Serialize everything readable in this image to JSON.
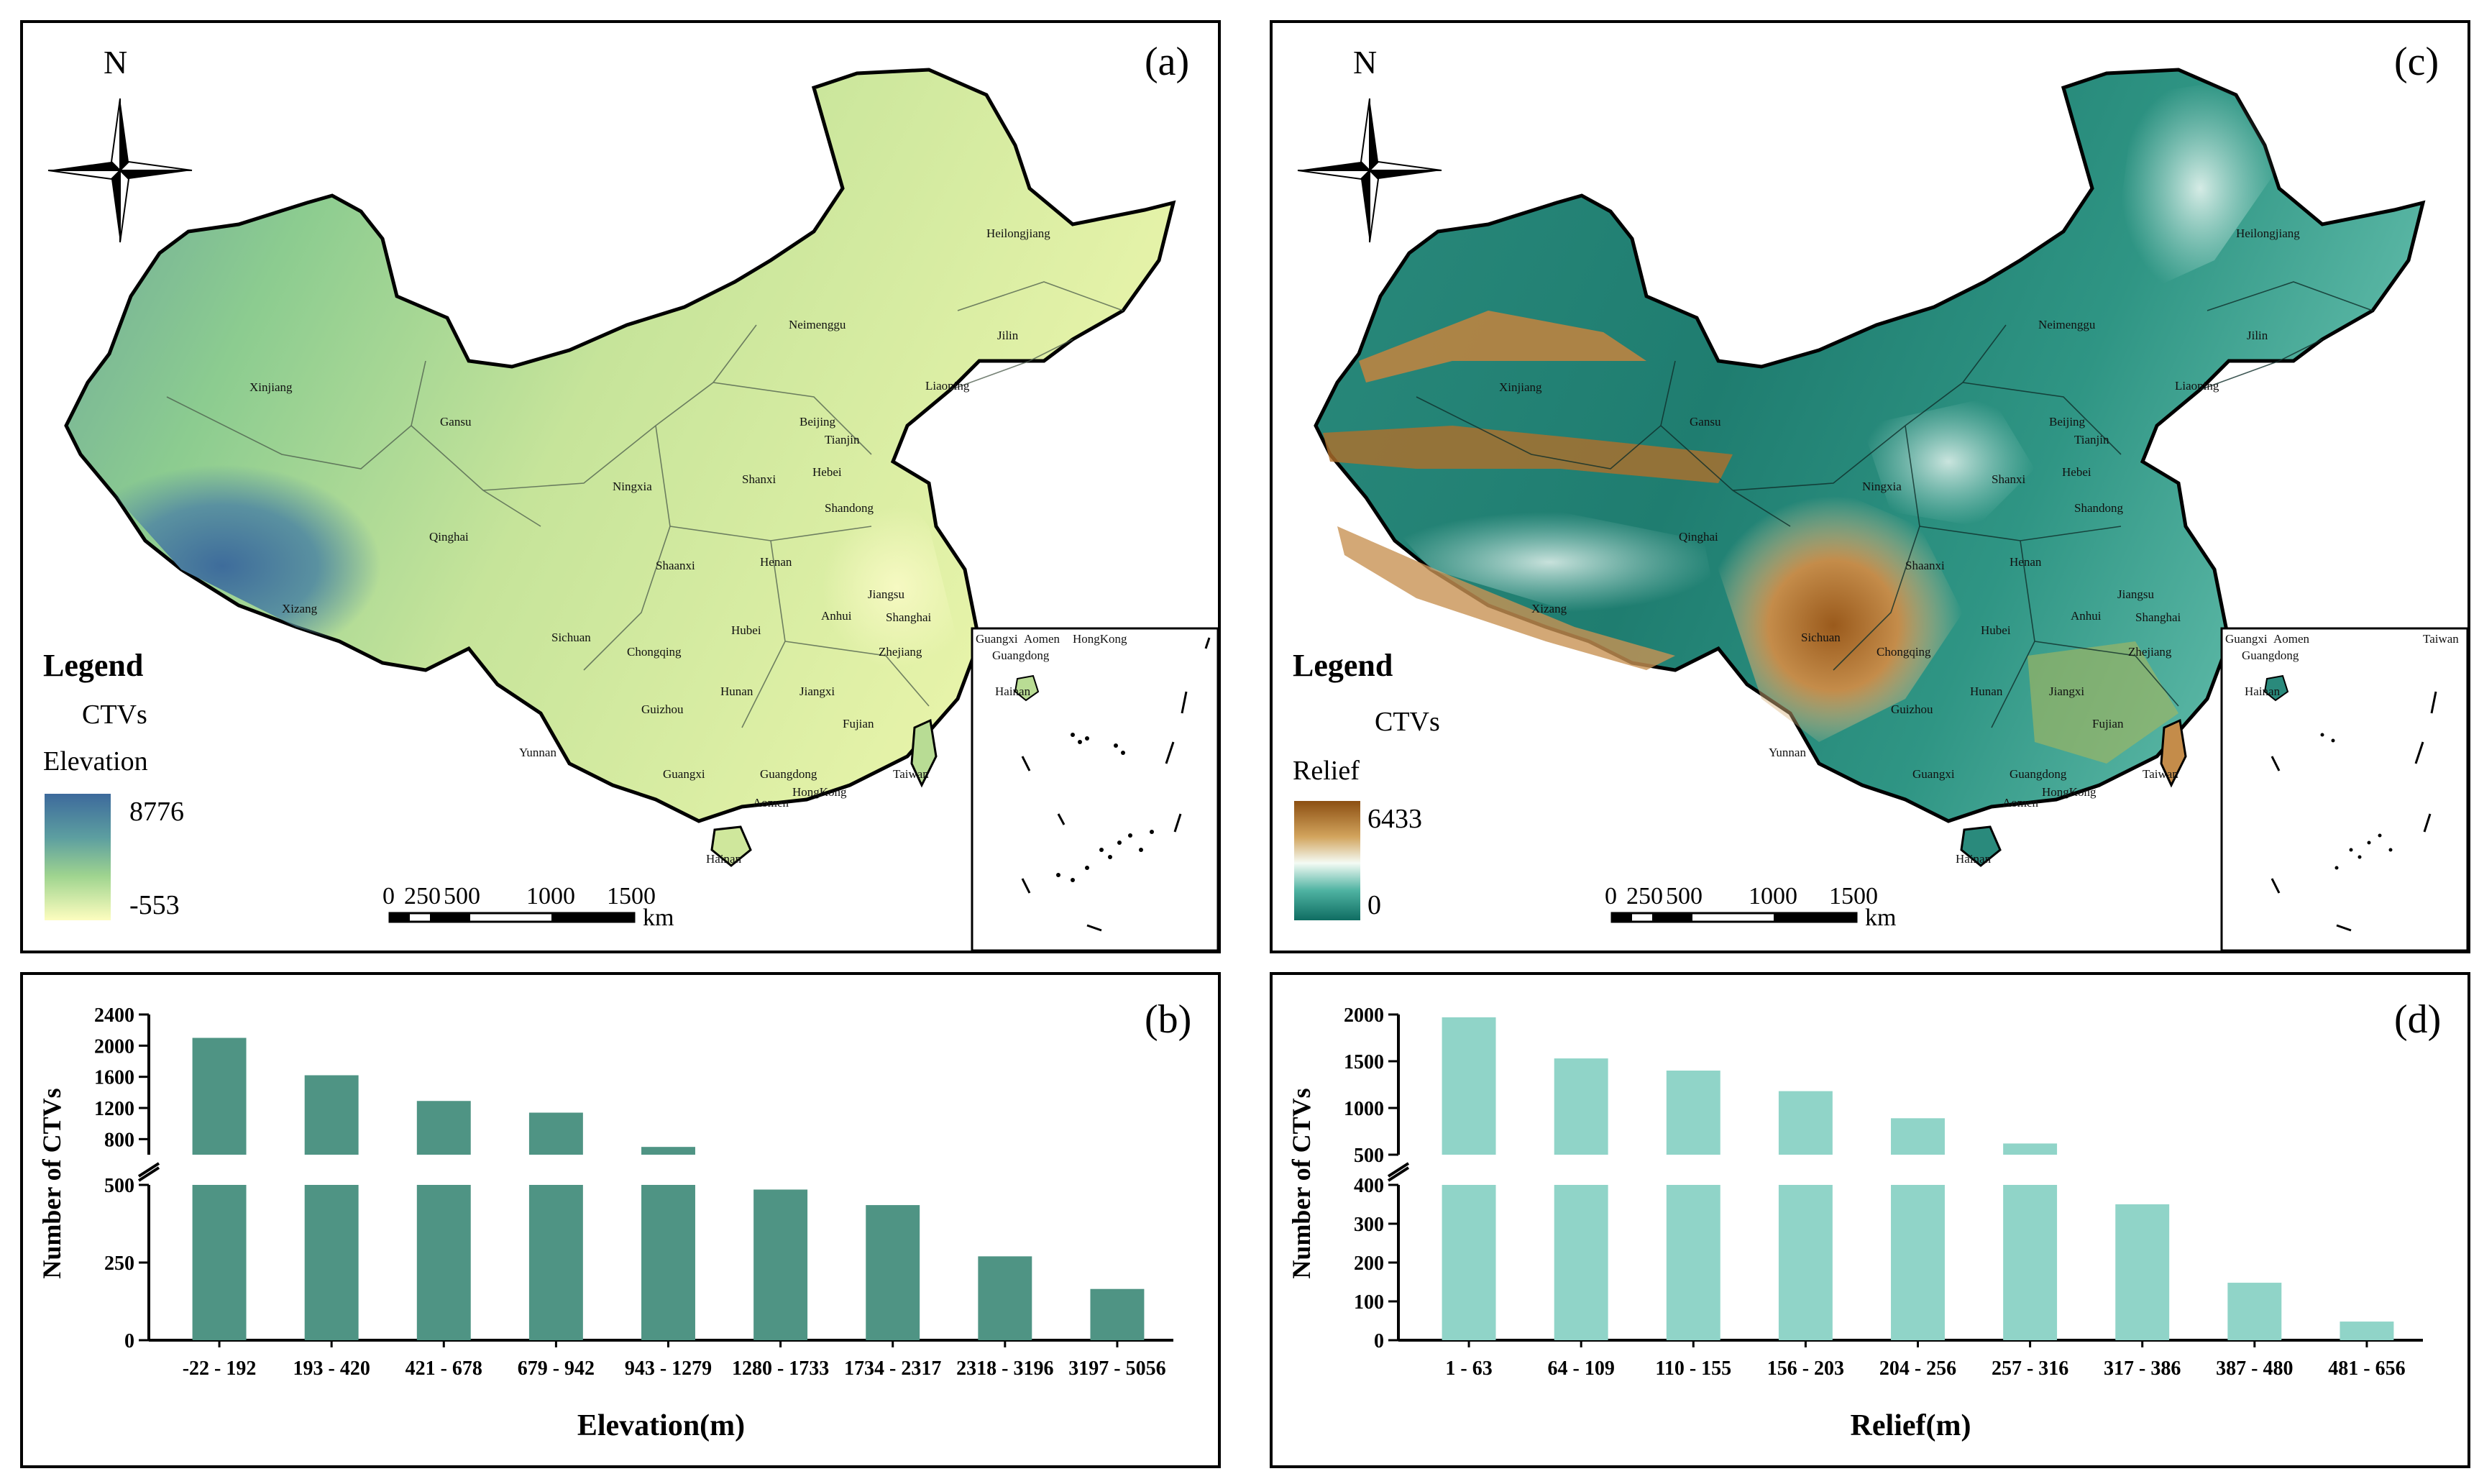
{
  "panel_a": {
    "label": "(a)",
    "north": "N",
    "legend_title": "Legend",
    "ctv_label": "CTVs",
    "var_label": "Elevation",
    "max_label": "8776",
    "min_label": "-553",
    "scale_labels": [
      "0",
      "250",
      "500",
      "1000",
      "1500"
    ],
    "scale_unit": "km",
    "ramp_colors": [
      "#3d6a9c",
      "#5d9fa0",
      "#9fd48f",
      "#fdfdbf"
    ],
    "provinces": [
      "Xinjiang",
      "Gansu",
      "Qinghai",
      "Xizang",
      "Sichuan",
      "Yunnan",
      "Neimenggu",
      "Heilongjiang",
      "Jilin",
      "Liaoning",
      "Beijing",
      "Tianjin",
      "Hebei",
      "Shanxi",
      "Shandong",
      "Ningxia",
      "Shaanxi",
      "Henan",
      "Jiangsu",
      "Shanghai",
      "Anhui",
      "Zhejiang",
      "Hubei",
      "Chongqing",
      "Guizhou",
      "Hunan",
      "Jiangxi",
      "Fujian",
      "Taiwan",
      "Guangxi",
      "Guangdong",
      "HongKong",
      "Aomen",
      "Hainan"
    ],
    "inset_labels": [
      "Guangxi",
      "Aomen",
      "HongKong",
      "Guangdong",
      "Hainan"
    ]
  },
  "panel_c": {
    "label": "(c)",
    "north": "N",
    "legend_title": "Legend",
    "ctv_label": "CTVs",
    "var_label": "Relief",
    "max_label": "6433",
    "min_label": "0",
    "scale_labels": [
      "0",
      "250",
      "500",
      "1000",
      "1500"
    ],
    "scale_unit": "km",
    "ramp_colors": [
      "#0f6d62",
      "#4fb3a2",
      "#f4fbf4",
      "#d2a45d",
      "#8c4f12"
    ],
    "provinces": [
      "Xinjiang",
      "Gansu",
      "Qinghai",
      "Xizang",
      "Sichuan",
      "Yunnan",
      "Neimenggu",
      "Heilongjiang",
      "Jilin",
      "Liaoning",
      "Beijing",
      "Tianjin",
      "Hebei",
      "Shanxi",
      "Shandong",
      "Ningxia",
      "Shaanxi",
      "Henan",
      "Jiangsu",
      "Shanghai",
      "Anhui",
      "Zhejiang",
      "Hubei",
      "Chongqing",
      "Guizhou",
      "Hunan",
      "Jiangxi",
      "Fujian",
      "Taiwan",
      "Guangxi",
      "Guangdong",
      "HongKong",
      "Aomen",
      "Hainan"
    ],
    "inset_labels": [
      "Guangxi",
      "Aomen",
      "Taiwan",
      "Guangdong",
      "Hainan"
    ]
  },
  "chart_data": [
    {
      "id": "b",
      "type": "bar",
      "label": "(b)",
      "title": "",
      "xlabel": "Elevation(m)",
      "ylabel": "Number of CTVs",
      "categories": [
        "-22 - 192",
        "193 - 420",
        "421 - 678",
        "679 - 942",
        "943 - 1279",
        "1280 - 1733",
        "1734 - 2317",
        "2318 - 3196",
        "3197 - 5056"
      ],
      "values": [
        2100,
        1620,
        1290,
        1140,
        700,
        485,
        435,
        270,
        165
      ],
      "broken_axis": {
        "lower": [
          0,
          500
        ],
        "upper": [
          600,
          2400
        ]
      },
      "yticks_lower": [
        0,
        250,
        500
      ],
      "yticks_upper": [
        800,
        1200,
        1600,
        2000,
        2400
      ],
      "color": "#4f9484"
    },
    {
      "id": "d",
      "type": "bar",
      "label": "(d)",
      "title": "",
      "xlabel": "Relief(m)",
      "ylabel": "Number of CTVs",
      "categories": [
        "1 - 63",
        "64 - 109",
        "110 - 155",
        "156 - 203",
        "204 - 256",
        "257 - 316",
        "317 - 386",
        "387 - 480",
        "481 - 656"
      ],
      "values": [
        1970,
        1530,
        1400,
        1180,
        890,
        620,
        350,
        148,
        48
      ],
      "broken_axis": {
        "lower": [
          0,
          400
        ],
        "upper": [
          500,
          2000
        ]
      },
      "yticks_lower": [
        0,
        100,
        200,
        300,
        400
      ],
      "yticks_upper": [
        500,
        1000,
        1500,
        2000
      ],
      "color": "#90d4c8"
    }
  ]
}
